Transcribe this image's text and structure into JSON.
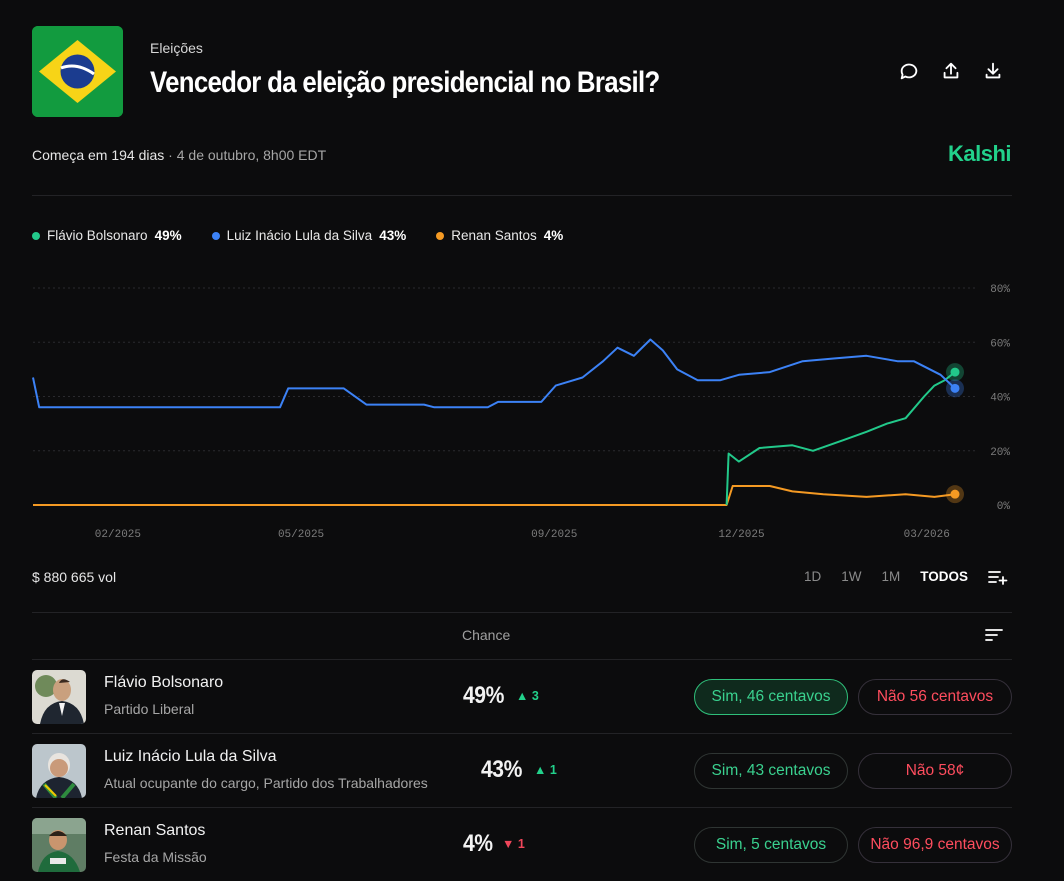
{
  "header": {
    "category": "Eleições",
    "title": "Vencedor da eleição presidencial no Brasil?",
    "start_prefix": "Começa em 194 dias",
    "start_date": " · 4 de outubro, 8h00 EDT",
    "brand": "Kalshi"
  },
  "legend": [
    {
      "name": "Flávio Bolsonaro",
      "pct": "49%",
      "color": "#22c98a"
    },
    {
      "name": "Luiz Inácio Lula da Silva",
      "pct": "43%",
      "color": "#3c82f6"
    },
    {
      "name": "Renan Santos",
      "pct": "4%",
      "color": "#f59a23"
    }
  ],
  "chart_data": {
    "type": "line",
    "ylim": [
      0,
      80
    ],
    "y_ticks": [
      "80%",
      "60%",
      "40%",
      "20%",
      "0%"
    ],
    "x_ticks": [
      "02/2025",
      "05/2025",
      "09/2025",
      "12/2025",
      "03/2026"
    ],
    "series": [
      {
        "name": "Luiz Inácio Lula da Silva",
        "color": "#3c82f6",
        "points": [
          [
            "2025-01-01",
            47
          ],
          [
            "2025-01-04",
            36
          ],
          [
            "2025-04-01",
            36
          ],
          [
            "2025-05-01",
            36
          ],
          [
            "2025-05-05",
            43
          ],
          [
            "2025-06-01",
            43
          ],
          [
            "2025-06-12",
            37
          ],
          [
            "2025-07-10",
            37
          ],
          [
            "2025-07-15",
            36
          ],
          [
            "2025-08-10",
            36
          ],
          [
            "2025-08-15",
            38
          ],
          [
            "2025-09-05",
            38
          ],
          [
            "2025-09-12",
            44
          ],
          [
            "2025-09-25",
            47
          ],
          [
            "2025-10-05",
            53
          ],
          [
            "2025-10-12",
            58
          ],
          [
            "2025-10-20",
            55
          ],
          [
            "2025-10-28",
            61
          ],
          [
            "2025-11-03",
            57
          ],
          [
            "2025-11-10",
            50
          ],
          [
            "2025-11-20",
            46
          ],
          [
            "2025-12-01",
            46
          ],
          [
            "2025-12-10",
            48
          ],
          [
            "2025-12-25",
            49
          ],
          [
            "2026-01-10",
            53
          ],
          [
            "2026-01-25",
            54
          ],
          [
            "2026-02-10",
            55
          ],
          [
            "2026-02-25",
            53
          ],
          [
            "2026-03-05",
            53
          ],
          [
            "2026-03-18",
            48
          ],
          [
            "2026-03-25",
            43
          ]
        ]
      },
      {
        "name": "Flávio Bolsonaro",
        "color": "#22c98a",
        "points": [
          [
            "2025-12-04",
            0
          ],
          [
            "2025-12-05",
            19
          ],
          [
            "2025-12-10",
            16
          ],
          [
            "2025-12-20",
            21
          ],
          [
            "2026-01-05",
            22
          ],
          [
            "2026-01-15",
            20
          ],
          [
            "2026-01-30",
            24
          ],
          [
            "2026-02-10",
            27
          ],
          [
            "2026-02-20",
            30
          ],
          [
            "2026-03-01",
            32
          ],
          [
            "2026-03-10",
            40
          ],
          [
            "2026-03-15",
            44
          ],
          [
            "2026-03-20",
            46
          ],
          [
            "2026-03-25",
            49
          ]
        ]
      },
      {
        "name": "Renan Santos",
        "color": "#f59a23",
        "points": [
          [
            "2025-01-01",
            0
          ],
          [
            "2025-12-04",
            0
          ],
          [
            "2025-12-07",
            7
          ],
          [
            "2025-12-25",
            7
          ],
          [
            "2026-01-05",
            5
          ],
          [
            "2026-01-20",
            4
          ],
          [
            "2026-02-10",
            3
          ],
          [
            "2026-03-01",
            4
          ],
          [
            "2026-03-15",
            3
          ],
          [
            "2026-03-25",
            4
          ]
        ]
      }
    ]
  },
  "volume": "$ 880 665 vol",
  "ranges": [
    "1D",
    "1W",
    "1M",
    "TODOS"
  ],
  "table": {
    "chance_header": "Chance",
    "rows": [
      {
        "name": "Flávio Bolsonaro",
        "party": "Partido Liberal",
        "chance": "49%",
        "delta": "▲ 3",
        "delta_dir": "up",
        "yes": "Sim,  46 centavos",
        "no": "Não  56 centavos"
      },
      {
        "name": "Luiz Inácio Lula da Silva",
        "party": "Atual ocupante do cargo, Partido dos Trabalhadores",
        "chance": "43%",
        "delta": "▲ 1",
        "delta_dir": "up",
        "yes": "Sim,  43 centavos",
        "no": "Não  58¢"
      },
      {
        "name": "Renan Santos",
        "party": "Festa da Missão",
        "chance": "4%",
        "delta": "▼ 1",
        "delta_dir": "down",
        "yes": "Sim,  5 centavos",
        "no": "Não  96,9 centavos"
      }
    ]
  }
}
